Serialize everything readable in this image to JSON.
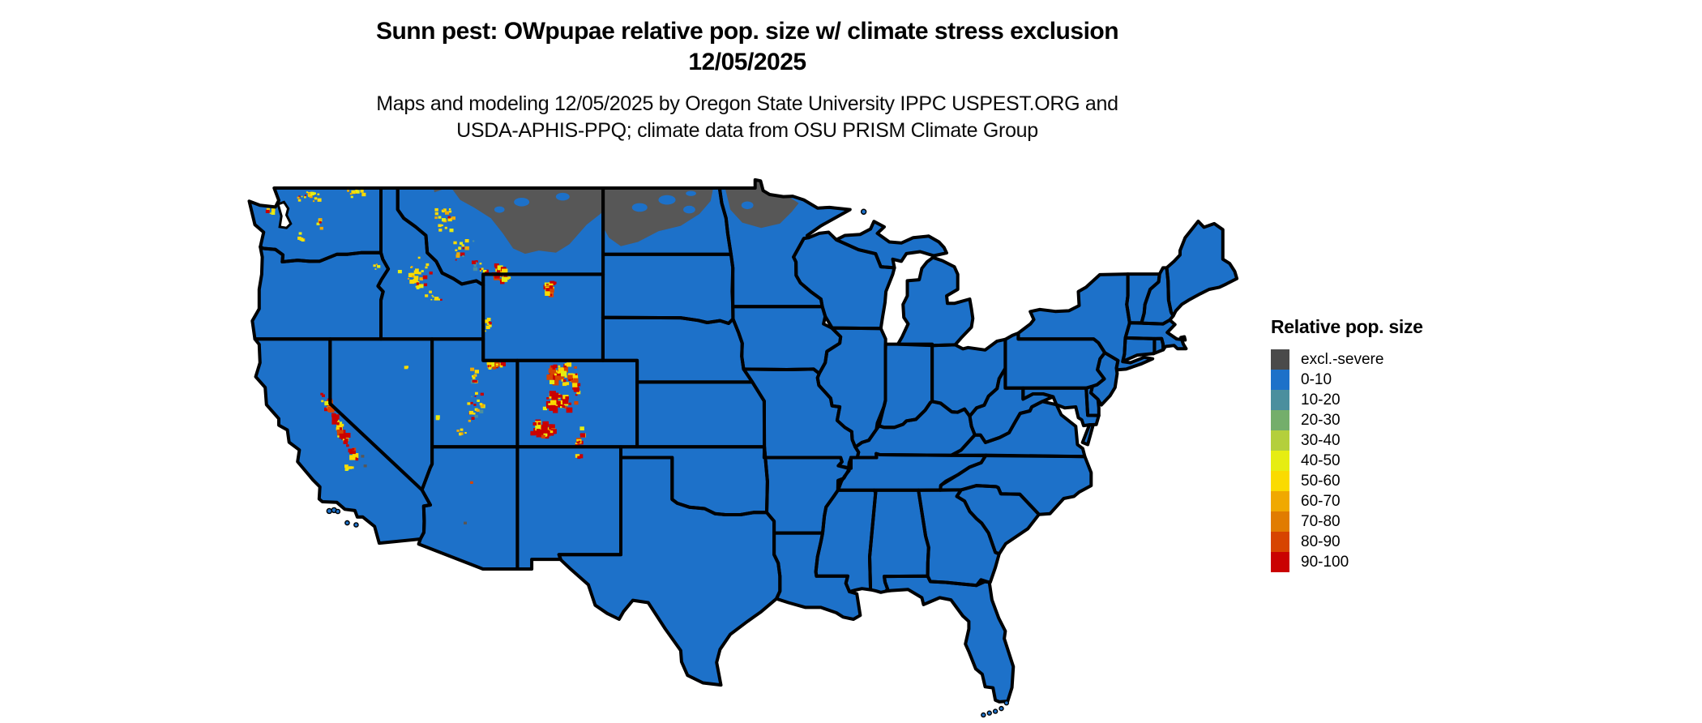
{
  "page": {
    "background": "#ffffff"
  },
  "title": {
    "line1": "Sunn pest: OWpupae relative pop. size w/ climate stress exclusion",
    "line2": "12/05/2025"
  },
  "subtitle": {
    "line1": "Maps and modeling 12/05/2025 by Oregon State University IPPC USPEST.ORG and",
    "line2": "USDA-APHIS-PPQ; climate data from OSU PRISM Climate Group"
  },
  "legend": {
    "title": "Relative pop. size",
    "items": [
      {
        "label": "excl.-severe",
        "color": "#4a4a4a"
      },
      {
        "label": "0-10",
        "color": "#1d71c9"
      },
      {
        "label": "10-20",
        "color": "#4b8f9e"
      },
      {
        "label": "20-30",
        "color": "#74ae6b"
      },
      {
        "label": "30-40",
        "color": "#b4cf3c"
      },
      {
        "label": "40-50",
        "color": "#e6ed12"
      },
      {
        "label": "50-60",
        "color": "#fadb00"
      },
      {
        "label": "60-70",
        "color": "#f0a900"
      },
      {
        "label": "70-80",
        "color": "#e17c00"
      },
      {
        "label": "80-90",
        "color": "#d74400"
      },
      {
        "label": "90-100",
        "color": "#ca0101"
      }
    ]
  },
  "map": {
    "land_base_category": "0-10",
    "land_base_color": "#1d71c9",
    "exclusion_color": "#575757",
    "border_color": "#000000",
    "water_color": "#ffffff",
    "speckle_palette": {
      "red": "#ca0101",
      "red_orange": "#d74400",
      "orange": "#f0a900",
      "gold": "#fadb00",
      "yellow_green": "#e6ed12",
      "teal": "#4b8f9e",
      "gray": "#575757"
    }
  }
}
